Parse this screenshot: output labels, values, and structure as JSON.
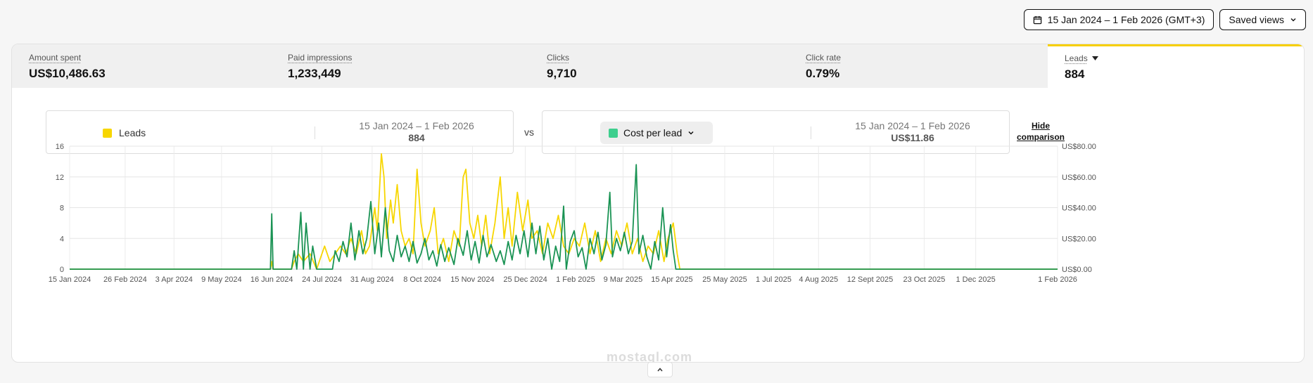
{
  "toolbar": {
    "date_range_label": "15 Jan 2024 – 1 Feb 2026 (GMT+3)",
    "saved_views_label": "Saved views",
    "calendar_icon": "calendar-icon",
    "chevron_icon": "chevron-down-icon"
  },
  "metrics": [
    {
      "label": "Amount spent",
      "value": "US$10,486.63"
    },
    {
      "label": "Paid impressions",
      "value": "1,233,449"
    },
    {
      "label": "Clicks",
      "value": "9,710"
    },
    {
      "label": "Click rate",
      "value": "0.79%"
    },
    {
      "label": "Leads",
      "value": "884"
    }
  ],
  "comparison": {
    "primary": {
      "name": "Leads",
      "range": "15 Jan 2024 – 1 Feb 2026",
      "value": "884",
      "color": "#f7d600"
    },
    "vs_label": "vs",
    "secondary": {
      "name": "Cost per lead",
      "range": "15 Jan 2024 – 1 Feb 2026",
      "value": "US$11.86",
      "color": "#3ecf8e"
    },
    "hide_label_line1": "Hide",
    "hide_label_line2": "comparison"
  },
  "watermark": "mostaql.com",
  "chart_data": {
    "type": "line",
    "x_ticks": [
      "15 Jan 2024",
      "26 Feb 2024",
      "3 Apr 2024",
      "9 May 2024",
      "16 Jun 2024",
      "24 Jul 2024",
      "31 Aug 2024",
      "8 Oct 2024",
      "15 Nov 2024",
      "25 Dec 2024",
      "1 Feb 2025",
      "9 Mar 2025",
      "15 Apr 2025",
      "25 May 2025",
      "1 Jul 2025",
      "4 Aug 2025",
      "12 Sept 2025",
      "23 Oct 2025",
      "1 Dec 2025",
      "1 Feb 2026"
    ],
    "y_left_ticks": [
      "0",
      "4",
      "8",
      "12",
      "16"
    ],
    "y_left_range": [
      0,
      16
    ],
    "y_right_ticks": [
      "US$0.00",
      "US$20.00",
      "US$40.00",
      "US$60.00",
      "US$80.00"
    ],
    "y_right_range": [
      0,
      80
    ],
    "grid": true,
    "series": [
      {
        "name": "Leads",
        "axis": "left",
        "color": "#f7d600",
        "points": [
          [
            "2024-01-15",
            0
          ],
          [
            "2024-06-15",
            0
          ],
          [
            "2024-06-16",
            1
          ],
          [
            "2024-06-17",
            0
          ],
          [
            "2024-07-01",
            0
          ],
          [
            "2024-07-03",
            1
          ],
          [
            "2024-07-06",
            2
          ],
          [
            "2024-07-10",
            1
          ],
          [
            "2024-07-15",
            2
          ],
          [
            "2024-07-20",
            0
          ],
          [
            "2024-07-26",
            3
          ],
          [
            "2024-07-30",
            1
          ],
          [
            "2024-08-03",
            2
          ],
          [
            "2024-08-07",
            3
          ],
          [
            "2024-08-11",
            2
          ],
          [
            "2024-08-15",
            4
          ],
          [
            "2024-08-19",
            2
          ],
          [
            "2024-08-23",
            5
          ],
          [
            "2024-08-26",
            2
          ],
          [
            "2024-08-29",
            3
          ],
          [
            "2024-09-02",
            8
          ],
          [
            "2024-09-04",
            5
          ],
          [
            "2024-09-07",
            15
          ],
          [
            "2024-09-09",
            12
          ],
          [
            "2024-09-11",
            4
          ],
          [
            "2024-09-14",
            9
          ],
          [
            "2024-09-16",
            6
          ],
          [
            "2024-09-19",
            11
          ],
          [
            "2024-09-22",
            5
          ],
          [
            "2024-09-25",
            3
          ],
          [
            "2024-09-28",
            4
          ],
          [
            "2024-10-01",
            2
          ],
          [
            "2024-10-04",
            13
          ],
          [
            "2024-10-07",
            6
          ],
          [
            "2024-10-10",
            3
          ],
          [
            "2024-10-14",
            5
          ],
          [
            "2024-10-17",
            8
          ],
          [
            "2024-10-20",
            2
          ],
          [
            "2024-10-24",
            4
          ],
          [
            "2024-10-28",
            1
          ],
          [
            "2024-11-01",
            5
          ],
          [
            "2024-11-05",
            3
          ],
          [
            "2024-11-08",
            12
          ],
          [
            "2024-11-10",
            13
          ],
          [
            "2024-11-13",
            6
          ],
          [
            "2024-11-16",
            4
          ],
          [
            "2024-11-19",
            7
          ],
          [
            "2024-11-22",
            3
          ],
          [
            "2024-11-25",
            7
          ],
          [
            "2024-11-28",
            2
          ],
          [
            "2024-12-02",
            6
          ],
          [
            "2024-12-06",
            12
          ],
          [
            "2024-12-09",
            4
          ],
          [
            "2024-12-12",
            8
          ],
          [
            "2024-12-15",
            3
          ],
          [
            "2024-12-19",
            10
          ],
          [
            "2024-12-23",
            5
          ],
          [
            "2024-12-27",
            9
          ],
          [
            "2024-12-30",
            4
          ],
          [
            "2025-01-03",
            5
          ],
          [
            "2025-01-07",
            2
          ],
          [
            "2025-01-11",
            6
          ],
          [
            "2025-01-15",
            4
          ],
          [
            "2025-01-19",
            7
          ],
          [
            "2025-01-23",
            3
          ],
          [
            "2025-01-27",
            2
          ],
          [
            "2025-01-31",
            4
          ],
          [
            "2025-02-04",
            3
          ],
          [
            "2025-02-08",
            6
          ],
          [
            "2025-02-12",
            2
          ],
          [
            "2025-02-16",
            5
          ],
          [
            "2025-02-20",
            1
          ],
          [
            "2025-02-24",
            4
          ],
          [
            "2025-02-28",
            2
          ],
          [
            "2025-03-04",
            5
          ],
          [
            "2025-03-08",
            3
          ],
          [
            "2025-03-12",
            6
          ],
          [
            "2025-03-16",
            2
          ],
          [
            "2025-03-20",
            4
          ],
          [
            "2025-03-24",
            1
          ],
          [
            "2025-03-28",
            3
          ],
          [
            "2025-04-01",
            2
          ],
          [
            "2025-04-05",
            5
          ],
          [
            "2025-04-09",
            1
          ],
          [
            "2025-04-12",
            4
          ],
          [
            "2025-04-16",
            6
          ],
          [
            "2025-04-19",
            2
          ],
          [
            "2025-04-21",
            0
          ],
          [
            "2026-02-01",
            0
          ]
        ]
      },
      {
        "name": "Cost per lead",
        "axis": "right",
        "color": "#1a9354",
        "points": [
          [
            "2024-01-15",
            0
          ],
          [
            "2024-06-15",
            0
          ],
          [
            "2024-06-16",
            36
          ],
          [
            "2024-06-17",
            0
          ],
          [
            "2024-07-01",
            0
          ],
          [
            "2024-07-03",
            12
          ],
          [
            "2024-07-05",
            0
          ],
          [
            "2024-07-08",
            37
          ],
          [
            "2024-07-10",
            0
          ],
          [
            "2024-07-12",
            30
          ],
          [
            "2024-07-15",
            0
          ],
          [
            "2024-07-17",
            15
          ],
          [
            "2024-07-20",
            0
          ],
          [
            "2024-08-01",
            0
          ],
          [
            "2024-08-03",
            12
          ],
          [
            "2024-08-06",
            5
          ],
          [
            "2024-08-09",
            18
          ],
          [
            "2024-08-12",
            8
          ],
          [
            "2024-08-15",
            30
          ],
          [
            "2024-08-18",
            6
          ],
          [
            "2024-08-21",
            25
          ],
          [
            "2024-08-24",
            10
          ],
          [
            "2024-08-27",
            20
          ],
          [
            "2024-08-30",
            44
          ],
          [
            "2024-09-02",
            10
          ],
          [
            "2024-09-05",
            30
          ],
          [
            "2024-09-07",
            8
          ],
          [
            "2024-09-10",
            40
          ],
          [
            "2024-09-13",
            12
          ],
          [
            "2024-09-16",
            5
          ],
          [
            "2024-09-19",
            22
          ],
          [
            "2024-09-22",
            8
          ],
          [
            "2024-09-25",
            15
          ],
          [
            "2024-09-28",
            5
          ],
          [
            "2024-10-01",
            18
          ],
          [
            "2024-10-04",
            4
          ],
          [
            "2024-10-07",
            10
          ],
          [
            "2024-10-10",
            20
          ],
          [
            "2024-10-13",
            6
          ],
          [
            "2024-10-16",
            12
          ],
          [
            "2024-10-19",
            2
          ],
          [
            "2024-10-22",
            16
          ],
          [
            "2024-10-25",
            5
          ],
          [
            "2024-10-28",
            14
          ],
          [
            "2024-11-01",
            3
          ],
          [
            "2024-11-04",
            20
          ],
          [
            "2024-11-08",
            9
          ],
          [
            "2024-11-11",
            25
          ],
          [
            "2024-11-14",
            6
          ],
          [
            "2024-11-17",
            18
          ],
          [
            "2024-11-20",
            4
          ],
          [
            "2024-11-23",
            22
          ],
          [
            "2024-11-26",
            8
          ],
          [
            "2024-11-29",
            16
          ],
          [
            "2024-12-03",
            5
          ],
          [
            "2024-12-06",
            12
          ],
          [
            "2024-12-09",
            3
          ],
          [
            "2024-12-12",
            18
          ],
          [
            "2024-12-15",
            6
          ],
          [
            "2024-12-18",
            22
          ],
          [
            "2024-12-21",
            10
          ],
          [
            "2024-12-24",
            25
          ],
          [
            "2024-12-27",
            8
          ],
          [
            "2024-12-30",
            30
          ],
          [
            "2025-01-02",
            10
          ],
          [
            "2025-01-05",
            28
          ],
          [
            "2025-01-08",
            6
          ],
          [
            "2025-01-11",
            20
          ],
          [
            "2025-01-14",
            0
          ],
          [
            "2025-01-17",
            15
          ],
          [
            "2025-01-20",
            5
          ],
          [
            "2025-01-23",
            41
          ],
          [
            "2025-01-25",
            0
          ],
          [
            "2025-01-28",
            18
          ],
          [
            "2025-01-31",
            25
          ],
          [
            "2025-02-03",
            8
          ],
          [
            "2025-02-06",
            14
          ],
          [
            "2025-02-09",
            0
          ],
          [
            "2025-02-12",
            20
          ],
          [
            "2025-02-15",
            10
          ],
          [
            "2025-02-18",
            24
          ],
          [
            "2025-02-21",
            6
          ],
          [
            "2025-02-24",
            16
          ],
          [
            "2025-02-27",
            50
          ],
          [
            "2025-03-01",
            8
          ],
          [
            "2025-03-04",
            20
          ],
          [
            "2025-03-07",
            12
          ],
          [
            "2025-03-10",
            24
          ],
          [
            "2025-03-13",
            10
          ],
          [
            "2025-03-16",
            18
          ],
          [
            "2025-03-19",
            68
          ],
          [
            "2025-03-21",
            10
          ],
          [
            "2025-03-24",
            22
          ],
          [
            "2025-03-27",
            8
          ],
          [
            "2025-03-30",
            0
          ],
          [
            "2025-04-02",
            18
          ],
          [
            "2025-04-05",
            6
          ],
          [
            "2025-04-08",
            40
          ],
          [
            "2025-04-11",
            8
          ],
          [
            "2025-04-14",
            29
          ],
          [
            "2025-04-16",
            12
          ],
          [
            "2025-04-18",
            0
          ],
          [
            "2026-02-01",
            0
          ]
        ]
      }
    ]
  }
}
